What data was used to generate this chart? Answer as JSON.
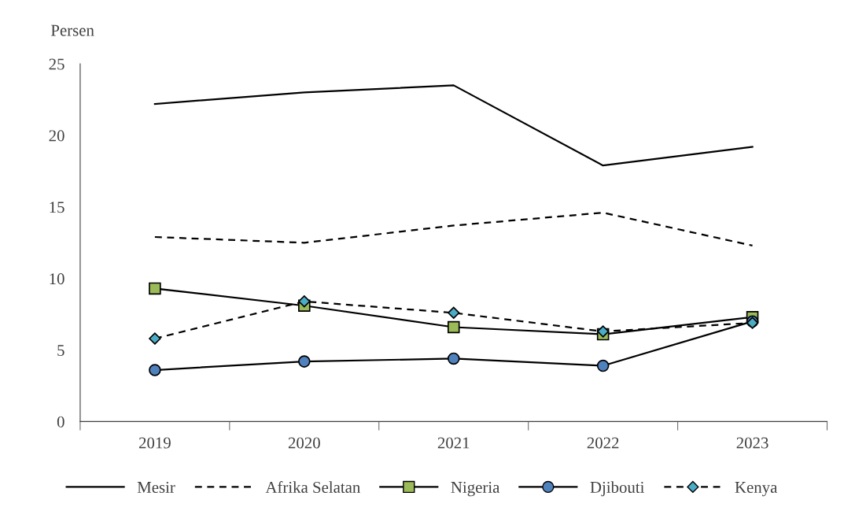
{
  "chart_data": {
    "type": "line",
    "ylabel": "Persen",
    "categories": [
      "2019",
      "2020",
      "2021",
      "2022",
      "2023"
    ],
    "series": [
      {
        "name": "Mesir",
        "color": "#000000",
        "values": [
          22.2,
          23.0,
          23.5,
          17.9,
          19.2
        ],
        "line_style": "solid",
        "marker": "none"
      },
      {
        "name": "Afrika Selatan",
        "color": "#000000",
        "values": [
          12.9,
          12.5,
          13.7,
          14.6,
          12.3
        ],
        "line_style": "dashed",
        "marker": "none"
      },
      {
        "name": "Nigeria",
        "color": "#9bbb59",
        "values": [
          9.3,
          8.1,
          6.6,
          6.1,
          7.3
        ],
        "line_style": "solid",
        "marker": "square"
      },
      {
        "name": "Djibouti",
        "color": "#4f81bd",
        "values": [
          3.6,
          4.2,
          4.4,
          3.9,
          7.0
        ],
        "line_style": "solid",
        "marker": "circle"
      },
      {
        "name": "Kenya",
        "color": "#4bacc6",
        "values": [
          5.8,
          8.4,
          7.6,
          6.3,
          6.9
        ],
        "line_style": "dashed",
        "marker": "diamond"
      }
    ],
    "ylim": [
      0,
      25
    ],
    "yticks": [
      0,
      5,
      10,
      15,
      20,
      25
    ],
    "grid": false,
    "legend": "bottom"
  }
}
